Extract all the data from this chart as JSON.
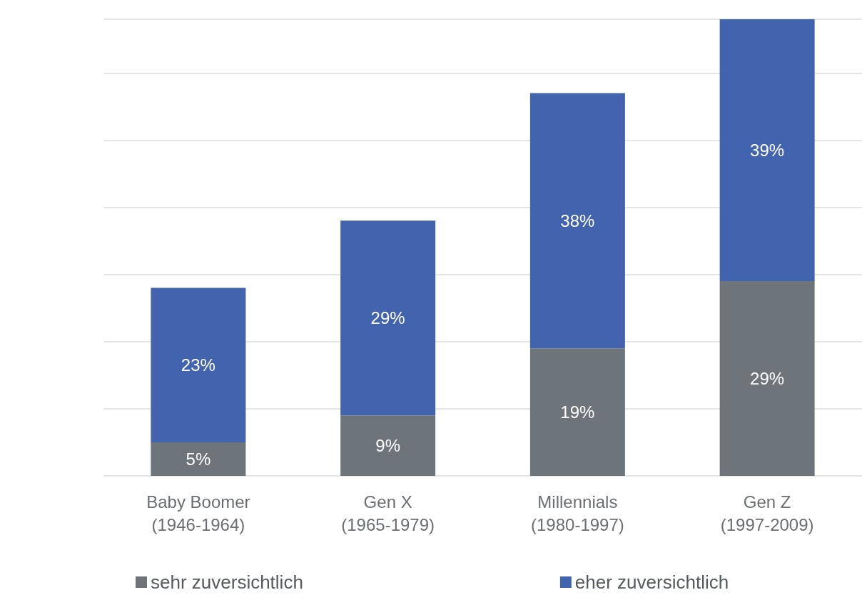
{
  "chart_data": {
    "type": "bar",
    "stacked": true,
    "categories": [
      "Baby Boomer\n(1946-1964)",
      "Gen X\n(1965-1979)",
      "Millennials\n(1980-1997)",
      "Gen Z\n(1997-2009)"
    ],
    "series": [
      {
        "name": "sehr zuversichtlich",
        "color": "#6d757b",
        "values": [
          5,
          9,
          19,
          29
        ],
        "value_labels": [
          "5%",
          "9%",
          "19%",
          "29%"
        ]
      },
      {
        "name": "eher zuversichtlich",
        "color": "#4264ae",
        "values": [
          23,
          29,
          38,
          39
        ],
        "value_labels": [
          "23%",
          "29%",
          "38%",
          "39%"
        ]
      }
    ],
    "grid": "y",
    "tick_labels": "x",
    "legend": "bottom"
  }
}
